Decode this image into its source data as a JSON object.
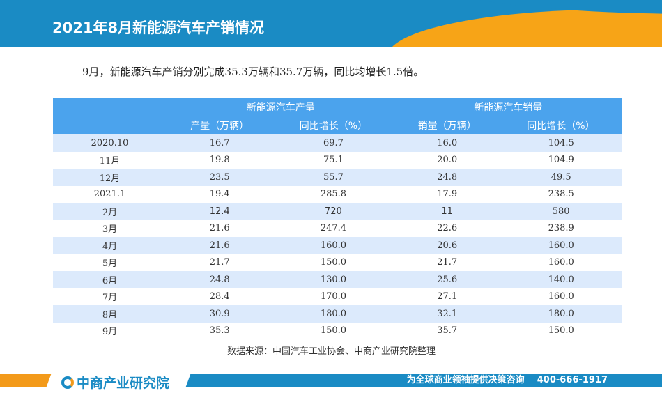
{
  "header": {
    "title": "2021年8月新能源汽车产销情况"
  },
  "lead": "9月，新能源汽车产销分别完成35.3万辆和35.7万辆，同比均增长1.5倍。",
  "table": {
    "group_headers": [
      "新能源汽车产量",
      "新能源汽车销量"
    ],
    "sub_headers": [
      "产量（万辆）",
      "同比增长（%）",
      "销量（万辆）",
      "同比增长（%）"
    ],
    "rows": [
      [
        "2020.10",
        "16.7",
        "69.7",
        "16.0",
        "104.5"
      ],
      [
        "11月",
        "19.8",
        "75.1",
        "20.0",
        "104.9"
      ],
      [
        "12月",
        "23.5",
        "55.7",
        "24.8",
        "49.5"
      ],
      [
        "2021.1",
        "19.4",
        "285.8",
        "17.9",
        "238.5"
      ],
      [
        "2月",
        "12.4",
        "720",
        "11",
        "580"
      ],
      [
        "3月",
        "21.6",
        "247.4",
        "22.6",
        "238.9"
      ],
      [
        "4月",
        "21.6",
        "160.0",
        "20.6",
        "160.0"
      ],
      [
        "5月",
        "21.7",
        "150.0",
        "21.7",
        "160.0"
      ],
      [
        "6月",
        "24.8",
        "130.0",
        "25.6",
        "140.0"
      ],
      [
        "7月",
        "28.4",
        "170.0",
        "27.1",
        "160.0"
      ],
      [
        "8月",
        "30.9",
        "180.0",
        "32.1",
        "180.0"
      ],
      [
        "9月",
        "35.3",
        "150.0",
        "35.7",
        "150.0"
      ]
    ]
  },
  "source": "数据来源：中国汽车工业协会、中商产业研究院整理",
  "footer": {
    "logo_text": "中商产业研究院",
    "slogan": "为全球商业领袖提供决策咨询",
    "phone": "400-666-1917"
  },
  "colors": {
    "brand_blue": "#1a8bc4",
    "accent_orange": "#f7a417",
    "header_blue": "#4ba3ed",
    "row_alt": "#dceafc"
  }
}
